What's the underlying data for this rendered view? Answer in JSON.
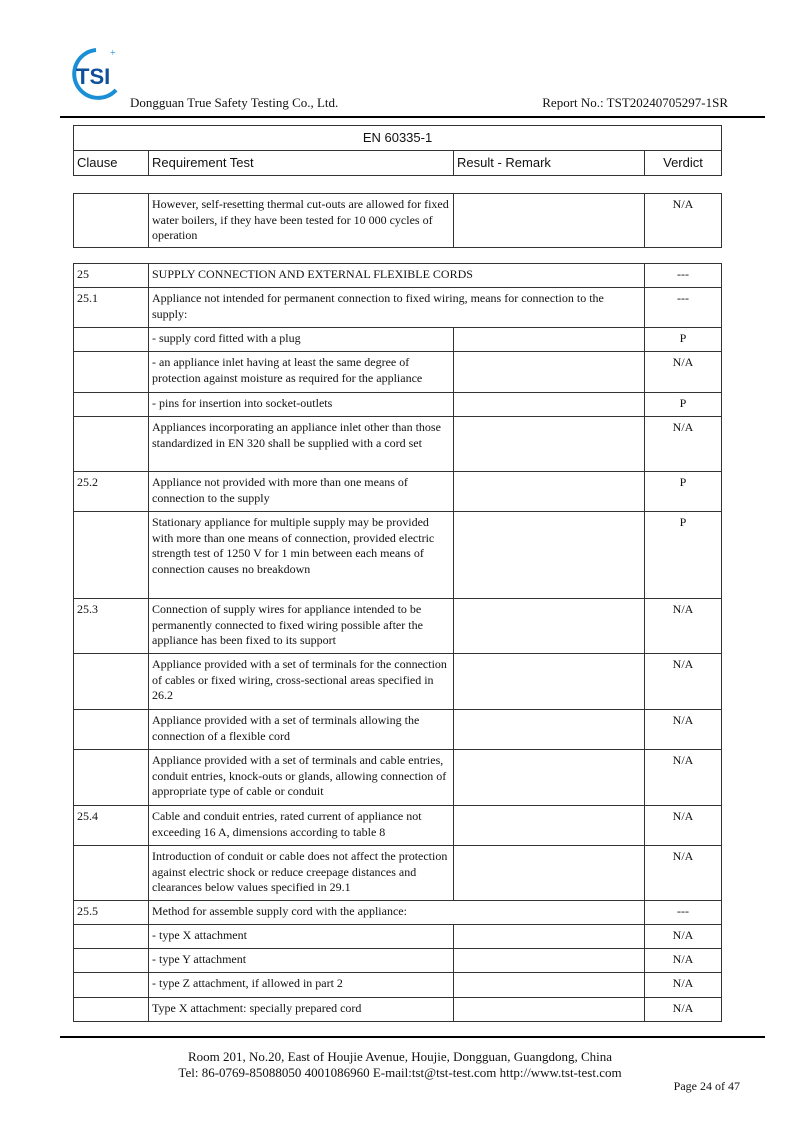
{
  "header": {
    "company": "Dongguan True Safety Testing Co., Ltd.",
    "report_no": "Report No.: TST20240705297-1SR",
    "logo_text": "TST",
    "brand_color": "#1a6fc0"
  },
  "table_header": {
    "standard": "EN  60335-1",
    "columns": [
      "Clause",
      "Requirement Test",
      "Result - Remark",
      "Verdict"
    ]
  },
  "continuation": [
    {
      "clause": "",
      "requirement": "However, self-resetting thermal cut-outs are allowed for fixed water boilers, if they have been tested for 10 000 cycles of operation",
      "result": "",
      "verdict": "N/A"
    }
  ],
  "rows": [
    {
      "clause": "25",
      "requirement": "SUPPLY CONNECTION AND EXTERNAL FLEXIBLE CORDS",
      "result": "",
      "verdict": "---",
      "span": true
    },
    {
      "clause": "25.1",
      "requirement": "Appliance not intended for permanent connection to fixed wiring, means for connection to the supply:",
      "result": "",
      "verdict": "---",
      "span": true
    },
    {
      "clause": "",
      "requirement": "- supply cord fitted with a plug",
      "result": "",
      "verdict": "P"
    },
    {
      "clause": "",
      "requirement": "- an appliance inlet having at least the same degree of protection against moisture as required for the appliance",
      "result": "",
      "verdict": "N/A"
    },
    {
      "clause": "",
      "requirement": "- pins for insertion into socket-outlets",
      "result": "",
      "verdict": "P"
    },
    {
      "clause": "",
      "requirement": "Appliances incorporating an appliance inlet other than those standardized in EN  320 shall be supplied with a cord set",
      "result": "",
      "verdict": "N/A"
    },
    {
      "clause": "25.2",
      "requirement": "Appliance not provided with more than one means of connection to the supply",
      "result": "",
      "verdict": "P"
    },
    {
      "clause": "",
      "requirement": "Stationary appliance for multiple supply may be provided with more than one means of connection, provided electric strength test of 1250 V for 1 min between each means of connection causes no breakdown",
      "result": "",
      "verdict": "P"
    },
    {
      "clause": "25.3",
      "requirement": "Connection of supply wires for appliance intended to be permanently connected to fixed wiring possible after the appliance has been fixed to its support",
      "result": "",
      "verdict": "N/A"
    },
    {
      "clause": "",
      "requirement": "Appliance provided with a set of terminals for the connection of cables or fixed wiring, cross-sectional areas specified in 26.2",
      "result": "",
      "verdict": "N/A"
    },
    {
      "clause": "",
      "requirement": "Appliance provided with a set of terminals allowing the connection of a flexible cord",
      "result": "",
      "verdict": "N/A"
    },
    {
      "clause": "",
      "requirement": "Appliance provided with a set of terminals and cable entries, conduit entries, knock-outs or glands, allowing connection of appropriate type of cable or conduit",
      "result": "",
      "verdict": "N/A"
    },
    {
      "clause": "25.4",
      "requirement": "Cable and conduit entries, rated current of appliance not exceeding 16 A, dimensions according to table 8",
      "result": "",
      "verdict": "N/A"
    },
    {
      "clause": "",
      "requirement": "Introduction of conduit or cable does not affect the protection against electric shock or reduce creepage distances and clearances below values specified in 29.1",
      "result": "",
      "verdict": "N/A"
    },
    {
      "clause": "25.5",
      "requirement": "Method for assemble supply cord with the appliance:",
      "result": "",
      "verdict": "---",
      "span": true
    },
    {
      "clause": "",
      "requirement": "- type X attachment",
      "result": "",
      "verdict": "N/A"
    },
    {
      "clause": "",
      "requirement": "- type Y attachment",
      "result": "",
      "verdict": "N/A"
    },
    {
      "clause": "",
      "requirement": "- type Z attachment, if allowed in part 2",
      "result": "",
      "verdict": "N/A"
    },
    {
      "clause": "",
      "requirement": "Type X attachment: specially prepared cord",
      "result": "",
      "verdict": "N/A"
    }
  ],
  "footer": {
    "address": "Room 201, No.20, East of Houjie Avenue, Houjie, Dongguan, Guangdong, China",
    "contact": "Tel: 86-0769-85088050  4001086960  E-mail:tst@tst-test.com  http://www.tst-test.com",
    "page": "Page 24 of 47"
  }
}
